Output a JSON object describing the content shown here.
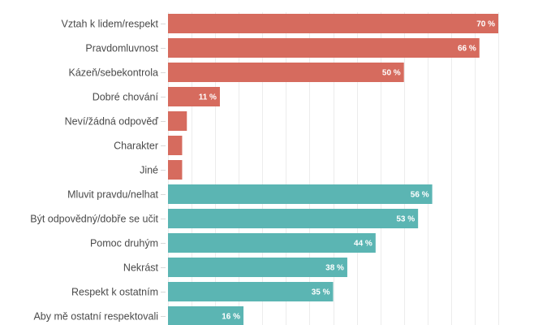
{
  "chart_data": {
    "type": "bar",
    "orientation": "horizontal",
    "title": "",
    "xlabel": "",
    "ylabel": "",
    "xlim": [
      0,
      70
    ],
    "grid": true,
    "grid_step": 5,
    "legend": "none",
    "value_suffix": " %",
    "colors": {
      "group_1": "#D66B5E",
      "group_2": "#5BB5B3"
    },
    "categories": [
      "Vztah k lidem/respekt",
      "Pravdomluvnost",
      "Kázeň/sebekontrola",
      "Dobré chování",
      "Neví/žádná odpověď",
      "Charakter",
      "Jiné",
      "Mluvit pravdu/nelhat",
      "Být odpovědný/dobře se učit",
      "Pomoc druhým",
      "Nekrást",
      "Respekt k ostatním",
      "Aby mě ostatní respektovali"
    ],
    "values": [
      70,
      66,
      50,
      11,
      4,
      3,
      3,
      56,
      53,
      44,
      38,
      35,
      16
    ],
    "groups": [
      "group_1",
      "group_1",
      "group_1",
      "group_1",
      "group_1",
      "group_1",
      "group_1",
      "group_2",
      "group_2",
      "group_2",
      "group_2",
      "group_2",
      "group_2"
    ],
    "value_labels": [
      "70 %",
      "66 %",
      "50 %",
      "11 %",
      "",
      "",
      "",
      "56 %",
      "53 %",
      "44 %",
      "38 %",
      "35 %",
      "16 %"
    ]
  }
}
